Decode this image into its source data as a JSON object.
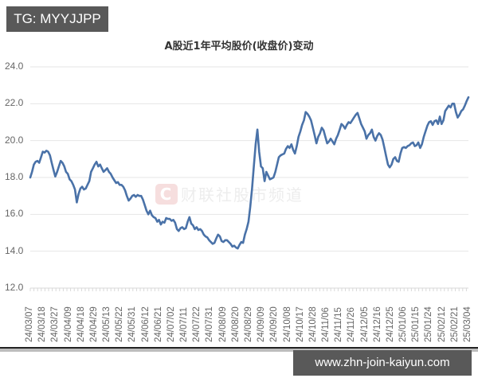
{
  "badges": {
    "top_left": "TG: MYYJJPP",
    "bottom_right": "www.zhn-join-kaiyun.com"
  },
  "watermark": {
    "logo": "C",
    "text": "财联社股市频道"
  },
  "colors": {
    "line": "#4a72a8",
    "grid": "#e6e6e6",
    "badge_bg": "#595959"
  },
  "chart_data": {
    "type": "line",
    "title": "A股近1年平均股价(收盘价)变动",
    "xlabel": "",
    "ylabel": "",
    "ylim": [
      12.0,
      24.0
    ],
    "grid": true,
    "legend": "none",
    "yticks": [
      "24.0",
      "22.0",
      "20.0",
      "18.0",
      "16.0",
      "14.0",
      "12.0"
    ],
    "xticks": [
      "24/03/07",
      "24/03/18",
      "24/03/27",
      "24/04/09",
      "24/04/18",
      "24/04/29",
      "24/05/13",
      "24/05/22",
      "24/05/31",
      "24/06/12",
      "24/06/21",
      "24/07/02",
      "24/07/11",
      "24/07/22",
      "24/07/31",
      "24/08/09",
      "24/08/20",
      "24/08/29",
      "24/09/09",
      "24/09/20",
      "24/10/08",
      "24/10/17",
      "24/10/28",
      "24/11/06",
      "24/11/15",
      "24/11/26",
      "24/12/05",
      "24/12/16",
      "24/12/25",
      "25/01/06",
      "25/01/15",
      "25/01/24",
      "25/02/12",
      "25/02/21",
      "25/03/04"
    ],
    "series": [
      {
        "name": "平均股价(收盘价)",
        "x_index": [
          0,
          1,
          2,
          3,
          4,
          5,
          6,
          7,
          8,
          9,
          10,
          11,
          12,
          13,
          14,
          15,
          16,
          17,
          18,
          19,
          20,
          21,
          22,
          23,
          24,
          25,
          26,
          27,
          28,
          29,
          30,
          31,
          32,
          33,
          34,
          35,
          36,
          37,
          38,
          39,
          40,
          41,
          42,
          43,
          44,
          45,
          46,
          47,
          48,
          49,
          50,
          51,
          52,
          53,
          54,
          55,
          56,
          57,
          58,
          59,
          60,
          61,
          62,
          63,
          64,
          65,
          66,
          67,
          68,
          69,
          70,
          71,
          72,
          73,
          74,
          75,
          76,
          77,
          78,
          79,
          80,
          81,
          82,
          83,
          84,
          85,
          86,
          87,
          88,
          89,
          90,
          91,
          92,
          93,
          94,
          95,
          96,
          97,
          98,
          99,
          100,
          101,
          102,
          103,
          104,
          105,
          106,
          107,
          108,
          109,
          110,
          111,
          112,
          113,
          114,
          115,
          116,
          117,
          118,
          119,
          120,
          121,
          122,
          123,
          124,
          125,
          126,
          127,
          128,
          129,
          130,
          131,
          132,
          133,
          134,
          135,
          136,
          137,
          138,
          139,
          140,
          141,
          142,
          143,
          144,
          145,
          146,
          147,
          148,
          149,
          150,
          151,
          152,
          153,
          154,
          155,
          156,
          157,
          158,
          159,
          160,
          161,
          162,
          163,
          164,
          165,
          166,
          167,
          168,
          169,
          170,
          171,
          172,
          173,
          174,
          175,
          176,
          177,
          178,
          179,
          180,
          181,
          182,
          183,
          184,
          185,
          186,
          187,
          188,
          189,
          190,
          191,
          192,
          193,
          194,
          195,
          196,
          197,
          198,
          199,
          200,
          201,
          202,
          203,
          204,
          205,
          206,
          207,
          208,
          209,
          210,
          211,
          212,
          213,
          214,
          215,
          216,
          217,
          218,
          219,
          220,
          221,
          222,
          223,
          224,
          225,
          226,
          227,
          228,
          229,
          230,
          231,
          232,
          233,
          234,
          235,
          236,
          237,
          238,
          239,
          240,
          241
        ],
        "values": [
          18.0,
          18.3,
          18.7,
          18.85,
          18.9,
          18.8,
          19.1,
          19.4,
          19.35,
          19.45,
          19.4,
          19.2,
          18.8,
          18.4,
          18.05,
          18.3,
          18.6,
          18.9,
          18.8,
          18.6,
          18.3,
          18.2,
          17.9,
          17.8,
          17.6,
          17.35,
          16.65,
          17.1,
          17.4,
          17.5,
          17.35,
          17.4,
          17.6,
          17.8,
          18.3,
          18.5,
          18.7,
          18.85,
          18.6,
          18.7,
          18.5,
          18.3,
          18.4,
          18.5,
          18.3,
          18.2,
          18.0,
          17.85,
          17.7,
          17.75,
          17.6,
          17.6,
          17.5,
          17.3,
          17.0,
          16.75,
          16.85,
          17.0,
          17.05,
          16.95,
          17.05,
          17.0,
          17.0,
          16.8,
          16.5,
          16.2,
          16.0,
          16.2,
          15.95,
          15.85,
          15.8,
          15.6,
          15.7,
          15.45,
          15.6,
          15.55,
          15.8,
          15.75,
          15.75,
          15.65,
          15.7,
          15.55,
          15.2,
          15.1,
          15.25,
          15.3,
          15.2,
          15.25,
          15.6,
          15.85,
          15.5,
          15.4,
          15.2,
          15.3,
          15.15,
          15.2,
          15.1,
          14.9,
          14.8,
          14.75,
          14.6,
          14.5,
          14.4,
          14.45,
          14.7,
          14.9,
          14.8,
          14.55,
          14.5,
          14.6,
          14.6,
          14.5,
          14.4,
          14.25,
          14.3,
          14.2,
          14.15,
          14.35,
          14.5,
          14.45,
          14.9,
          15.2,
          15.6,
          16.4,
          17.4,
          18.6,
          19.8,
          20.6,
          19.4,
          18.6,
          18.5,
          17.8,
          18.3,
          18.1,
          17.9,
          17.95,
          18.0,
          18.3,
          18.7,
          19.1,
          19.2,
          19.25,
          19.3,
          19.55,
          19.7,
          19.6,
          19.8,
          19.5,
          19.3,
          19.7,
          20.2,
          20.5,
          20.85,
          21.1,
          21.55,
          21.45,
          21.3,
          21.1,
          20.7,
          20.3,
          19.85,
          20.2,
          20.4,
          20.7,
          20.55,
          20.2,
          19.85,
          19.95,
          20.1,
          19.95,
          19.8,
          20.1,
          20.3,
          20.6,
          20.9,
          20.8,
          20.65,
          20.85,
          21.0,
          20.95,
          21.1,
          21.25,
          21.4,
          21.5,
          21.2,
          20.9,
          20.7,
          20.5,
          20.1,
          20.3,
          20.4,
          20.6,
          20.2,
          20.0,
          20.25,
          20.4,
          20.3,
          20.05,
          19.6,
          19.15,
          18.7,
          18.55,
          18.7,
          19.0,
          19.1,
          18.9,
          18.85,
          19.3,
          19.6,
          19.65,
          19.6,
          19.7,
          19.75,
          19.85,
          19.9,
          19.7,
          19.75,
          19.9,
          19.6,
          19.8,
          20.2,
          20.5,
          20.8,
          21.0,
          21.05,
          20.85,
          21.05,
          21.1,
          20.9,
          21.3,
          20.9,
          21.1,
          21.6,
          21.75,
          21.9,
          21.8,
          22.0,
          22.0,
          21.55,
          21.25,
          21.4,
          21.6,
          21.7,
          21.9,
          22.15,
          22.35
        ]
      }
    ]
  }
}
